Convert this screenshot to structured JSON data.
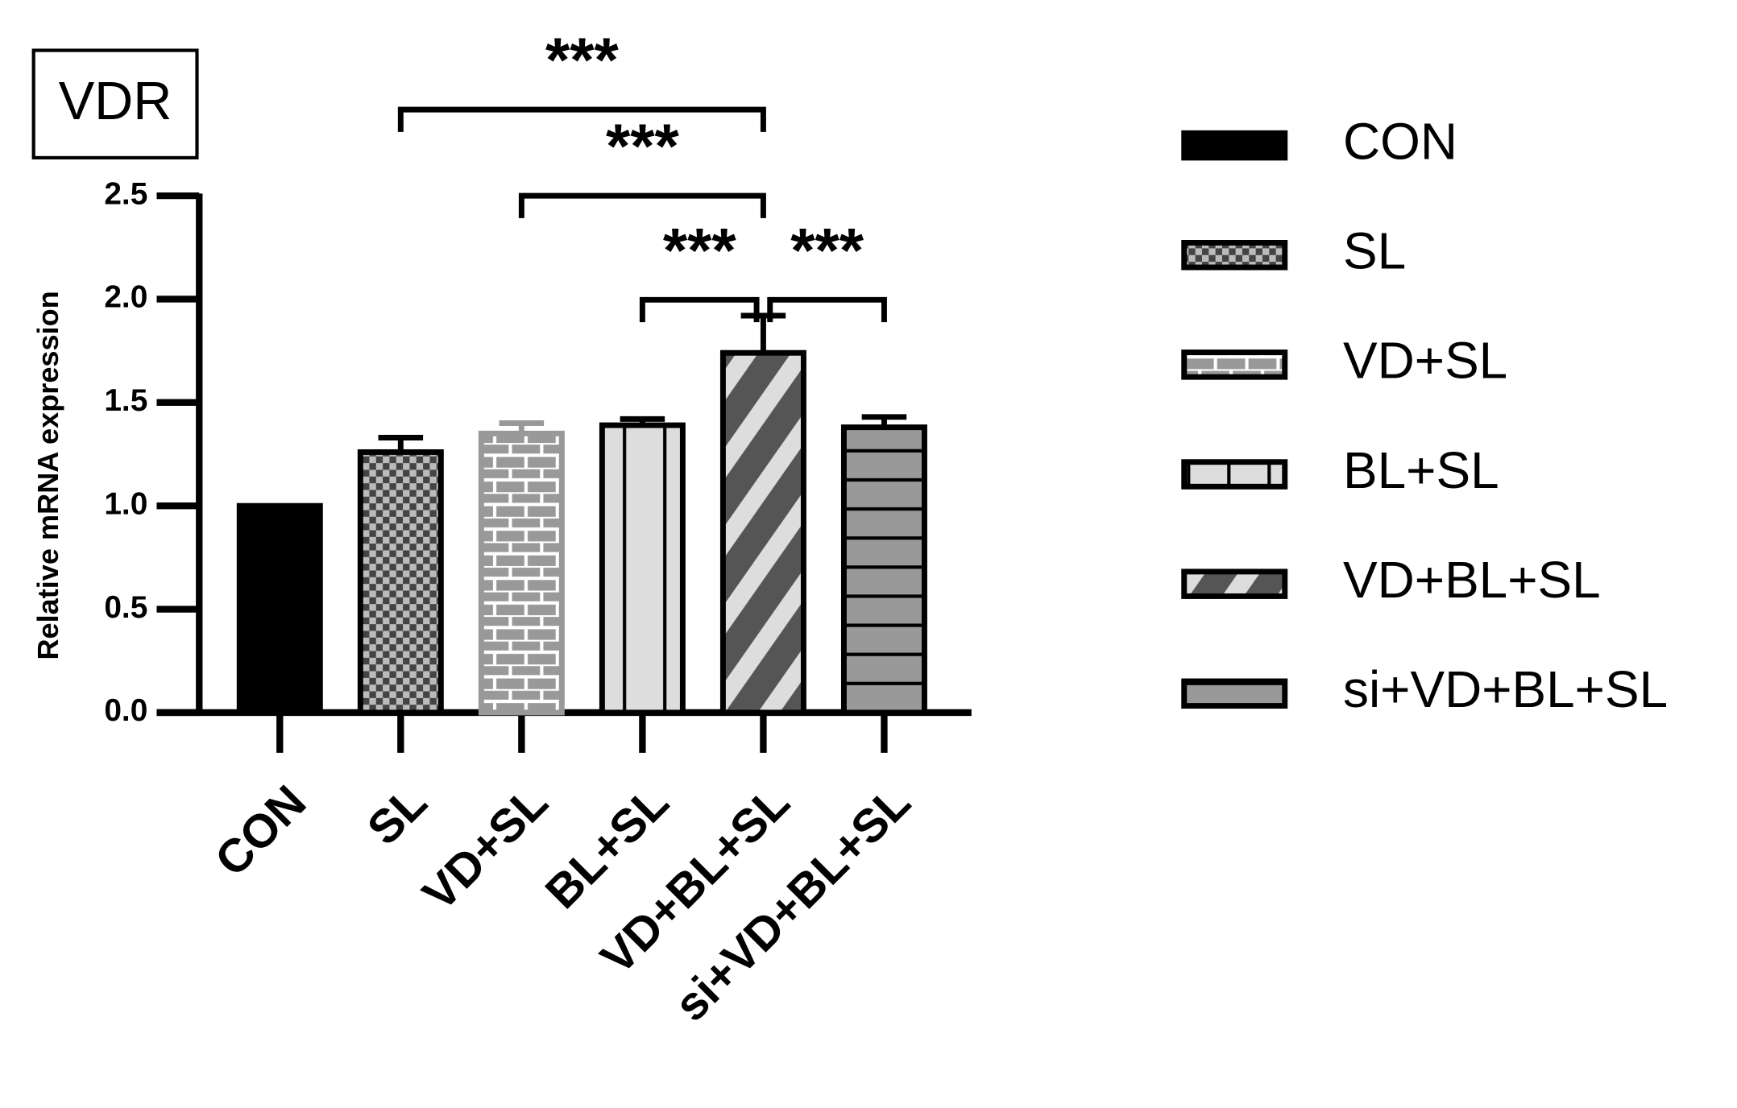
{
  "chart_data": {
    "type": "bar",
    "title": "VDR",
    "y_label": "Relative mRNA expression",
    "categories": [
      "CON",
      "SL",
      "VD+SL",
      "BL+SL",
      "VD+BL+SL",
      "si+VD+BL+SL"
    ],
    "values": [
      1.0,
      1.26,
      1.35,
      1.39,
      1.74,
      1.38
    ],
    "errors": [
      0,
      0.07,
      0.05,
      0.03,
      0.18,
      0.05
    ],
    "colors": [
      "#000000",
      "#555555",
      "#999999",
      "#dddddd",
      "#555555",
      "#999999"
    ],
    "patterns": [
      "solid",
      "checker",
      "brick",
      "vertical",
      "diagonal",
      "horizontal"
    ],
    "ylim": [
      0,
      2.5
    ],
    "yticks": [
      {
        "value": 0,
        "label": "0.0"
      },
      0.5,
      {
        "value": 1,
        "label": "1.0"
      },
      1.5,
      {
        "value": 2,
        "label": "2.0"
      },
      2.5
    ],
    "legend": "right",
    "significance": [
      {
        "groups": [
          "SL",
          "VD+BL+SL"
        ],
        "label": "***"
      },
      {
        "groups": [
          "VD+SL",
          "VD+BL+SL"
        ],
        "label": "***"
      },
      {
        "groups": [
          "BL+SL",
          "VD+BL+SL"
        ],
        "label": "***"
      },
      {
        "groups": [
          "VD+BL+SL",
          "si+VD+BL+SL"
        ],
        "label": "***"
      }
    ]
  }
}
